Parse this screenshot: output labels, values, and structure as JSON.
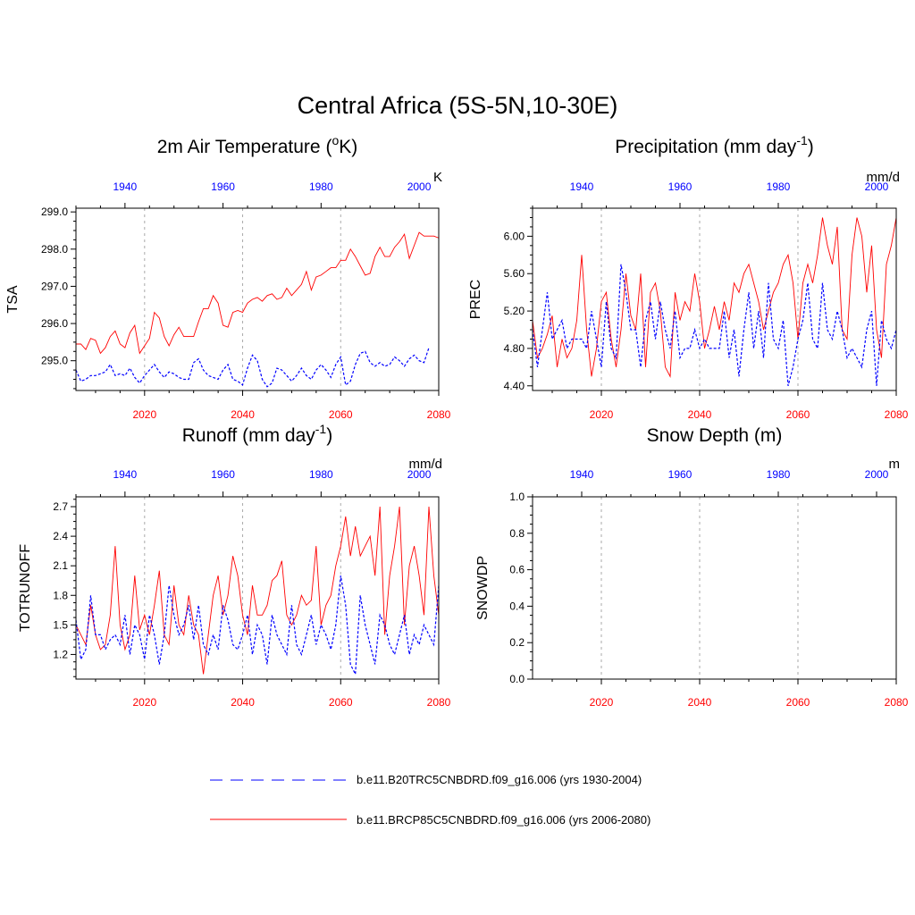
{
  "figure": {
    "title": "Central Africa (5S-5N,10-30E)"
  },
  "colors": {
    "future": "#ff0000",
    "historical": "#0000ff",
    "axis": "#000000",
    "grid": "#aaaaaa"
  },
  "legend": {
    "items": [
      {
        "label": "b.e11.B20TRC5CNBDRD.f09_g16.006 (yrs 1930-2004)",
        "style": "dashed",
        "color": "#0000ff"
      },
      {
        "label": "b.e11.BRCP85C5CNBDRD.f09_g16.006 (yrs 2006-2080)",
        "style": "solid",
        "color": "#ff0000"
      }
    ]
  },
  "chart_data": [
    {
      "type": "line",
      "title_main": "2m Air Temperature (",
      "title_sup": "o",
      "title_tail": "K)",
      "ylabel": "TSA",
      "units": "K",
      "xlim_future": [
        2006,
        2080
      ],
      "xlim_hist": [
        1930,
        2004
      ],
      "ylim": [
        294.2,
        299.1
      ],
      "yticks": [
        295.0,
        296.0,
        297.0,
        298.0,
        299.0
      ],
      "ytick_labels": [
        "295.0",
        "296.0",
        "297.0",
        "298.0",
        "299.0"
      ],
      "xticks_future": [
        2020,
        2040,
        2060,
        2080
      ],
      "xticks_hist": [
        1940,
        1960,
        1980,
        2000
      ],
      "gridlines": [
        2020,
        2040,
        2060
      ],
      "series": [
        {
          "key": "future",
          "style": "solid",
          "values": [
            295.45,
            295.45,
            295.3,
            295.6,
            295.55,
            295.2,
            295.35,
            295.65,
            295.8,
            295.45,
            295.35,
            295.75,
            295.95,
            295.2,
            295.4,
            295.6,
            296.3,
            296.15,
            295.65,
            295.4,
            295.7,
            295.9,
            295.65,
            295.65,
            295.65,
            296.05,
            296.4,
            296.4,
            296.75,
            296.55,
            295.95,
            295.9,
            296.3,
            296.35,
            296.3,
            296.55,
            296.65,
            296.7,
            296.6,
            296.75,
            296.8,
            296.65,
            296.7,
            296.95,
            296.75,
            296.9,
            297.05,
            297.4,
            296.9,
            297.25,
            297.3,
            297.4,
            297.5,
            297.5,
            297.7,
            297.7,
            298.0,
            297.8,
            297.55,
            297.3,
            297.35,
            297.8,
            298.05,
            297.8,
            297.8,
            298.05,
            298.2,
            298.4,
            297.75,
            298.1,
            298.45,
            298.35,
            298.35,
            298.35,
            298.3,
            298.85,
            298.55,
            298.6
          ]
        },
        {
          "key": "historical",
          "style": "dashed",
          "values": [
            294.75,
            294.45,
            294.5,
            294.6,
            294.6,
            294.65,
            294.7,
            294.9,
            294.6,
            294.65,
            294.6,
            294.8,
            294.55,
            294.4,
            294.6,
            294.75,
            294.9,
            294.7,
            294.55,
            294.7,
            294.65,
            294.55,
            294.5,
            294.5,
            294.95,
            295.05,
            294.75,
            294.6,
            294.55,
            294.5,
            294.75,
            294.9,
            294.5,
            294.45,
            294.35,
            294.8,
            295.15,
            295.0,
            294.5,
            294.3,
            294.4,
            294.8,
            294.75,
            294.6,
            294.45,
            294.6,
            294.8,
            294.6,
            294.5,
            294.75,
            294.9,
            294.75,
            294.55,
            294.9,
            295.1,
            294.35,
            294.45,
            294.9,
            295.2,
            295.25,
            294.95,
            294.85,
            294.95,
            294.85,
            294.9,
            295.1,
            295.0,
            294.85,
            295.05,
            295.15,
            295.0,
            294.95,
            295.35
          ]
        }
      ]
    },
    {
      "type": "line",
      "title_main": "Precipitation (mm day",
      "title_sup": "-1",
      "title_tail": ")",
      "ylabel": "PREC",
      "units": "mm/d",
      "xlim_future": [
        2006,
        2080
      ],
      "xlim_hist": [
        1930,
        2004
      ],
      "ylim": [
        4.35,
        6.3
      ],
      "yticks": [
        4.4,
        4.8,
        5.2,
        5.6,
        6.0
      ],
      "ytick_labels": [
        "4.40",
        "4.80",
        "5.20",
        "5.60",
        "6.00"
      ],
      "xticks_future": [
        2020,
        2040,
        2060,
        2080
      ],
      "xticks_hist": [
        1940,
        1960,
        1980,
        2000
      ],
      "gridlines": [
        2020,
        2040,
        2060
      ],
      "series": [
        {
          "key": "future",
          "style": "solid",
          "values": [
            5.1,
            4.7,
            4.8,
            4.95,
            5.15,
            4.6,
            4.9,
            4.7,
            4.8,
            5.1,
            5.8,
            5.0,
            4.5,
            4.8,
            5.3,
            5.4,
            4.9,
            4.6,
            5.0,
            5.6,
            5.15,
            5.0,
            5.6,
            4.6,
            5.4,
            5.5,
            5.2,
            4.6,
            4.5,
            5.4,
            5.1,
            5.3,
            5.2,
            5.6,
            5.3,
            4.8,
            5.0,
            5.25,
            5.0,
            5.3,
            5.1,
            5.5,
            5.4,
            5.6,
            5.7,
            5.5,
            5.3,
            5.0,
            5.2,
            5.4,
            5.5,
            5.7,
            5.8,
            5.5,
            4.9,
            5.5,
            5.7,
            5.5,
            5.8,
            6.2,
            5.9,
            5.7,
            6.1,
            5.0,
            4.9,
            5.8,
            6.2,
            6.0,
            5.4,
            5.9,
            5.0,
            4.7,
            5.7,
            5.9,
            6.2,
            5.5,
            5.4,
            6.1,
            5.7,
            5.4
          ]
        },
        {
          "key": "historical",
          "style": "dashed",
          "values": [
            5.0,
            4.6,
            5.0,
            5.4,
            4.9,
            5.0,
            5.1,
            4.8,
            4.9,
            4.9,
            4.9,
            4.8,
            5.2,
            4.9,
            4.6,
            5.3,
            4.8,
            4.7,
            5.7,
            5.4,
            5.0,
            5.0,
            4.6,
            5.1,
            5.3,
            4.9,
            5.3,
            5.0,
            4.8,
            5.2,
            4.7,
            4.8,
            4.8,
            5.0,
            4.8,
            4.9,
            4.8,
            4.8,
            4.8,
            5.2,
            4.7,
            5.0,
            4.5,
            5.0,
            5.4,
            4.8,
            5.2,
            4.7,
            5.5,
            4.9,
            4.8,
            5.1,
            4.4,
            4.6,
            4.9,
            5.1,
            5.5,
            4.9,
            4.8,
            5.5,
            5.0,
            4.9,
            5.2,
            5.0,
            4.7,
            4.8,
            4.7,
            4.6,
            5.0,
            5.2,
            4.4,
            5.1,
            4.9,
            4.8,
            5.0
          ]
        }
      ]
    },
    {
      "type": "line",
      "title_main": "Runoff (mm day",
      "title_sup": "-1",
      "title_tail": ")",
      "ylabel": "TOTRUNOFF",
      "units": "mm/d",
      "xlim_future": [
        2006,
        2080
      ],
      "xlim_hist": [
        1930,
        2004
      ],
      "ylim": [
        0.95,
        2.8
      ],
      "yticks": [
        1.2,
        1.5,
        1.8,
        2.1,
        2.4,
        2.7
      ],
      "ytick_labels": [
        "1.2",
        "1.5",
        "1.8",
        "2.1",
        "2.4",
        "2.7"
      ],
      "xticks_future": [
        2020,
        2040,
        2060,
        2080
      ],
      "xticks_hist": [
        1940,
        1960,
        1980,
        2000
      ],
      "gridlines": [
        2020,
        2040,
        2060
      ],
      "series": [
        {
          "key": "future",
          "style": "solid",
          "values": [
            1.5,
            1.4,
            1.3,
            1.7,
            1.4,
            1.25,
            1.3,
            1.6,
            2.3,
            1.5,
            1.25,
            1.4,
            2.0,
            1.45,
            1.6,
            1.4,
            1.7,
            2.05,
            1.4,
            1.3,
            1.9,
            1.5,
            1.4,
            1.8,
            1.5,
            1.4,
            1.0,
            1.4,
            1.8,
            2.0,
            1.6,
            1.8,
            2.2,
            2.0,
            1.6,
            1.4,
            1.9,
            1.6,
            1.6,
            1.7,
            1.95,
            2.0,
            2.15,
            1.6,
            1.5,
            1.6,
            1.8,
            1.7,
            1.75,
            2.3,
            1.5,
            1.7,
            1.8,
            2.1,
            2.3,
            2.6,
            2.2,
            2.5,
            2.2,
            2.3,
            2.4,
            2.0,
            2.7,
            1.4,
            2.0,
            2.3,
            2.7,
            1.5,
            2.1,
            2.3,
            2.0,
            1.6,
            2.7,
            2.0,
            1.6,
            1.7,
            2.5,
            2.4,
            2.0,
            1.8
          ]
        },
        {
          "key": "historical",
          "style": "dashed",
          "values": [
            1.55,
            1.15,
            1.25,
            1.8,
            1.4,
            1.4,
            1.25,
            1.35,
            1.4,
            1.3,
            1.6,
            1.2,
            1.5,
            1.4,
            1.15,
            1.6,
            1.4,
            1.1,
            1.4,
            1.9,
            1.6,
            1.4,
            1.5,
            1.7,
            1.35,
            1.7,
            1.3,
            1.2,
            1.4,
            1.25,
            1.7,
            1.55,
            1.3,
            1.25,
            1.4,
            1.6,
            1.2,
            1.5,
            1.4,
            1.1,
            1.6,
            1.4,
            1.3,
            1.2,
            1.7,
            1.3,
            1.2,
            1.4,
            1.6,
            1.3,
            1.5,
            1.4,
            1.25,
            1.5,
            2.0,
            1.7,
            1.1,
            1.0,
            1.8,
            1.5,
            1.3,
            1.1,
            1.6,
            1.5,
            1.3,
            1.2,
            1.4,
            1.6,
            1.2,
            1.4,
            1.3,
            1.5,
            1.4,
            1.3,
            1.9
          ]
        }
      ]
    },
    {
      "type": "line",
      "title_main": "Snow Depth (m)",
      "title_sup": "",
      "title_tail": "",
      "ylabel": "SNOWDP",
      "units": "m",
      "xlim_future": [
        2006,
        2080
      ],
      "xlim_hist": [
        1930,
        2004
      ],
      "ylim": [
        0.0,
        1.0
      ],
      "yticks": [
        0.0,
        0.2,
        0.4,
        0.6,
        0.8,
        1.0
      ],
      "ytick_labels": [
        "0.0",
        "0.2",
        "0.4",
        "0.6",
        "0.8",
        "1.0"
      ],
      "xticks_future": [
        2020,
        2040,
        2060,
        2080
      ],
      "xticks_hist": [
        1940,
        1960,
        1980,
        2000
      ],
      "gridlines": [
        2020,
        2040,
        2060
      ],
      "series": []
    }
  ]
}
